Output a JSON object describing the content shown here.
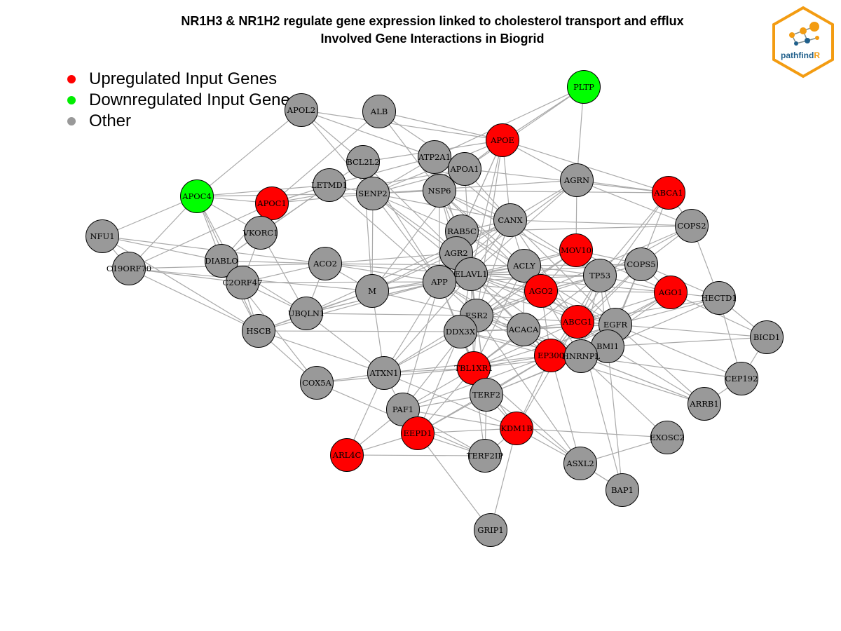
{
  "header": {
    "title": "NR1H3 & NR1H2 regulate gene expression linked to cholesterol transport and efflux",
    "subtitle": "Involved Gene Interactions in Biogrid"
  },
  "logo": {
    "text_main": "pathfind",
    "text_accent": "R",
    "icon": "pathfindr-network-logo"
  },
  "legend": [
    {
      "label": "Upregulated Input Genes",
      "color": "#ff0000"
    },
    {
      "label": "Downregulated Input Genes",
      "color": "#00ee00"
    },
    {
      "label": "Other",
      "color": "#999999"
    }
  ],
  "colors": {
    "up": "#ff0000",
    "down": "#00ff00",
    "other": "#999999",
    "edge": "#aaaaaa",
    "node_border": "#000000",
    "logo_orange": "#f39c12",
    "logo_blue": "#1f5f8b"
  },
  "nodes": [
    {
      "id": "PLTP",
      "status": "down"
    },
    {
      "id": "APOL2",
      "status": "other"
    },
    {
      "id": "ALB",
      "status": "other"
    },
    {
      "id": "APOE",
      "status": "up"
    },
    {
      "id": "ATP2A1",
      "status": "other"
    },
    {
      "id": "BCL2L2",
      "status": "other"
    },
    {
      "id": "APOA1",
      "status": "other"
    },
    {
      "id": "AGRN",
      "status": "other"
    },
    {
      "id": "ABCA1",
      "status": "up"
    },
    {
      "id": "APOC4",
      "status": "down"
    },
    {
      "id": "APOC1",
      "status": "up"
    },
    {
      "id": "LETMD1",
      "status": "other"
    },
    {
      "id": "SENP2",
      "status": "other"
    },
    {
      "id": "NSP6",
      "status": "other"
    },
    {
      "id": "NFU1",
      "status": "other"
    },
    {
      "id": "VKORC1",
      "status": "other"
    },
    {
      "id": "CANX",
      "status": "other"
    },
    {
      "id": "COPS2",
      "status": "other"
    },
    {
      "id": "RAB5C",
      "status": "other"
    },
    {
      "id": "AGR2",
      "status": "other"
    },
    {
      "id": "MOV10",
      "status": "up"
    },
    {
      "id": "DIABLO",
      "status": "other"
    },
    {
      "id": "C19ORF70",
      "status": "other"
    },
    {
      "id": "ACO2",
      "status": "other"
    },
    {
      "id": "C2ORF47",
      "status": "other"
    },
    {
      "id": "ELAVL1",
      "status": "other"
    },
    {
      "id": "ACLY",
      "status": "other"
    },
    {
      "id": "COPS5",
      "status": "other"
    },
    {
      "id": "TP53",
      "status": "other"
    },
    {
      "id": "APP",
      "status": "other"
    },
    {
      "id": "M",
      "status": "other"
    },
    {
      "id": "AGO2",
      "status": "up"
    },
    {
      "id": "AGO1",
      "status": "up"
    },
    {
      "id": "HECTD1",
      "status": "other"
    },
    {
      "id": "UBQLN1",
      "status": "other"
    },
    {
      "id": "ESR2",
      "status": "other"
    },
    {
      "id": "HSCB",
      "status": "other"
    },
    {
      "id": "DDX3X",
      "status": "other"
    },
    {
      "id": "ACACA",
      "status": "other"
    },
    {
      "id": "ABCG1",
      "status": "up"
    },
    {
      "id": "EGFR",
      "status": "other"
    },
    {
      "id": "BICD1",
      "status": "other"
    },
    {
      "id": "BMI1",
      "status": "other"
    },
    {
      "id": "EP300",
      "status": "up"
    },
    {
      "id": "HNRNPL",
      "status": "other"
    },
    {
      "id": "TBL1XR1",
      "status": "up"
    },
    {
      "id": "ATXN1",
      "status": "other"
    },
    {
      "id": "COX5A",
      "status": "other"
    },
    {
      "id": "CEP192",
      "status": "other"
    },
    {
      "id": "TERF2",
      "status": "other"
    },
    {
      "id": "ARRB1",
      "status": "other"
    },
    {
      "id": "PAF1",
      "status": "other"
    },
    {
      "id": "EEPD1",
      "status": "up"
    },
    {
      "id": "KDM1B",
      "status": "up"
    },
    {
      "id": "EXOSC2",
      "status": "other"
    },
    {
      "id": "ARL4C",
      "status": "up"
    },
    {
      "id": "TERF2IP",
      "status": "other"
    },
    {
      "id": "ASXL2",
      "status": "other"
    },
    {
      "id": "BAP1",
      "status": "other"
    },
    {
      "id": "GRIP1",
      "status": "other"
    }
  ],
  "edges": [
    [
      "PLTP",
      "APOE"
    ],
    [
      "PLTP",
      "ATP2A1"
    ],
    [
      "PLTP",
      "AGRN"
    ],
    [
      "PLTP",
      "APOA1"
    ],
    [
      "APOL2",
      "APOC4"
    ],
    [
      "APOL2",
      "ATP2A1"
    ],
    [
      "APOL2",
      "BCL2L2"
    ],
    [
      "APOL2",
      "SENP2"
    ],
    [
      "APOL2",
      "APOE"
    ],
    [
      "ALB",
      "APOE"
    ],
    [
      "ALB",
      "NSP6"
    ],
    [
      "ALB",
      "APOC1"
    ],
    [
      "ALB",
      "APOA1"
    ],
    [
      "APOE",
      "SENP2"
    ],
    [
      "APOE",
      "APOA1"
    ],
    [
      "APOE",
      "AGRN"
    ],
    [
      "APOE",
      "CANX"
    ],
    [
      "APOE",
      "APP"
    ],
    [
      "APOE",
      "ELAVL1"
    ],
    [
      "APOE",
      "ESR2"
    ],
    [
      "APOE",
      "BCL2L2"
    ],
    [
      "APOE",
      "ABCA1"
    ],
    [
      "APOE",
      "RAB5C"
    ],
    [
      "ATP2A1",
      "SENP2"
    ],
    [
      "ATP2A1",
      "NSP6"
    ],
    [
      "ATP2A1",
      "CANX"
    ],
    [
      "ATP2A1",
      "LETMD1"
    ],
    [
      "ATP2A1",
      "ELAVL1"
    ],
    [
      "BCL2L2",
      "SENP2"
    ],
    [
      "BCL2L2",
      "LETMD1"
    ],
    [
      "BCL2L2",
      "APP"
    ],
    [
      "BCL2L2",
      "M"
    ],
    [
      "BCL2L2",
      "AGR2"
    ],
    [
      "APOA1",
      "SENP2"
    ],
    [
      "APOA1",
      "NSP6"
    ],
    [
      "APOA1",
      "ABCA1"
    ],
    [
      "APOA1",
      "CANX"
    ],
    [
      "APOA1",
      "APOC1"
    ],
    [
      "APOA1",
      "ELAVL1"
    ],
    [
      "APOA1",
      "M"
    ],
    [
      "AGRN",
      "ABCA1"
    ],
    [
      "AGRN",
      "CANX"
    ],
    [
      "AGRN",
      "SENP2"
    ],
    [
      "AGRN",
      "COPS2"
    ],
    [
      "AGRN",
      "MOV10"
    ],
    [
      "AGRN",
      "APP"
    ],
    [
      "AGRN",
      "ELAVL1"
    ],
    [
      "ABCA1",
      "COPS2"
    ],
    [
      "ABCA1",
      "NSP6"
    ],
    [
      "ABCA1",
      "COPS5"
    ],
    [
      "ABCA1",
      "TP53"
    ],
    [
      "ABCA1",
      "ABCG1"
    ],
    [
      "APOC4",
      "APOC1"
    ],
    [
      "APOC4",
      "LETMD1"
    ],
    [
      "APOC4",
      "NFU1"
    ],
    [
      "APOC4",
      "C19ORF70"
    ],
    [
      "APOC4",
      "DIABLO"
    ],
    [
      "APOC4",
      "C2ORF47"
    ],
    [
      "APOC4",
      "HSCB"
    ],
    [
      "APOC4",
      "VKORC1"
    ],
    [
      "APOC4",
      "SENP2"
    ],
    [
      "APOC1",
      "SENP2"
    ],
    [
      "APOC1",
      "LETMD1"
    ],
    [
      "APOC1",
      "VKORC1"
    ],
    [
      "APOC1",
      "DIABLO"
    ],
    [
      "APOC1",
      "C19ORF70"
    ],
    [
      "LETMD1",
      "SENP2"
    ],
    [
      "LETMD1",
      "VKORC1"
    ],
    [
      "LETMD1",
      "DIABLO"
    ],
    [
      "LETMD1",
      "APP"
    ],
    [
      "SENP2",
      "NSP6"
    ],
    [
      "SENP2",
      "M"
    ],
    [
      "SENP2",
      "APP"
    ],
    [
      "SENP2",
      "CANX"
    ],
    [
      "SENP2",
      "ELAVL1"
    ],
    [
      "SENP2",
      "AGR2"
    ],
    [
      "SENP2",
      "RAB5C"
    ],
    [
      "NSP6",
      "CANX"
    ],
    [
      "NSP6",
      "RAB5C"
    ],
    [
      "NSP6",
      "AGR2"
    ],
    [
      "NSP6",
      "APP"
    ],
    [
      "NSP6",
      "ELAVL1"
    ],
    [
      "NSP6",
      "ACLY"
    ],
    [
      "NSP6",
      "AGO2"
    ],
    [
      "NSP6",
      "TP53"
    ],
    [
      "NFU1",
      "DIABLO"
    ],
    [
      "NFU1",
      "C19ORF70"
    ],
    [
      "NFU1",
      "HSCB"
    ],
    [
      "NFU1",
      "ACO2"
    ],
    [
      "VKORC1",
      "DIABLO"
    ],
    [
      "VKORC1",
      "C2ORF47"
    ],
    [
      "VKORC1",
      "UBQLN1"
    ],
    [
      "CANX",
      "COPS2"
    ],
    [
      "CANX",
      "RAB5C"
    ],
    [
      "CANX",
      "AGR2"
    ],
    [
      "CANX",
      "APP"
    ],
    [
      "CANX",
      "ELAVL1"
    ],
    [
      "CANX",
      "ACLY"
    ],
    [
      "CANX",
      "TP53"
    ],
    [
      "CANX",
      "ABCG1"
    ],
    [
      "CANX",
      "ESR2"
    ],
    [
      "CANX",
      "EGFR"
    ],
    [
      "CANX",
      "M"
    ],
    [
      "CANX",
      "UBQLN1"
    ],
    [
      "COPS2",
      "COPS5"
    ],
    [
      "COPS2",
      "TP53"
    ],
    [
      "COPS2",
      "RAB5C"
    ],
    [
      "COPS2",
      "HECTD1"
    ],
    [
      "COPS2",
      "AGO2"
    ],
    [
      "RAB5C",
      "AGR2"
    ],
    [
      "RAB5C",
      "APP"
    ],
    [
      "RAB5C",
      "ELAVL1"
    ],
    [
      "RAB5C",
      "ESR2"
    ],
    [
      "RAB5C",
      "EGFR"
    ],
    [
      "RAB5C",
      "AGO2"
    ],
    [
      "AGR2",
      "APP"
    ],
    [
      "AGR2",
      "ELAVL1"
    ],
    [
      "AGR2",
      "ACO2"
    ],
    [
      "AGR2",
      "M"
    ],
    [
      "MOV10",
      "AGO2"
    ],
    [
      "MOV10",
      "AGO1"
    ],
    [
      "MOV10",
      "TP53"
    ],
    [
      "MOV10",
      "ELAVL1"
    ],
    [
      "MOV10",
      "ACLY"
    ],
    [
      "MOV10",
      "ESR2"
    ],
    [
      "MOV10",
      "DDX3X"
    ],
    [
      "MOV10",
      "COPS5"
    ],
    [
      "DIABLO",
      "C2ORF47"
    ],
    [
      "DIABLO",
      "HSCB"
    ],
    [
      "DIABLO",
      "ACO2"
    ],
    [
      "DIABLO",
      "UBQLN1"
    ],
    [
      "DIABLO",
      "COX5A"
    ],
    [
      "C19ORF70",
      "ACO2"
    ],
    [
      "C19ORF70",
      "HSCB"
    ],
    [
      "C19ORF70",
      "C2ORF47"
    ],
    [
      "C19ORF70",
      "M"
    ],
    [
      "ACO2",
      "APP"
    ],
    [
      "ACO2",
      "M"
    ],
    [
      "ACO2",
      "C2ORF47"
    ],
    [
      "ACO2",
      "ELAVL1"
    ],
    [
      "ACO2",
      "UBQLN1"
    ],
    [
      "ACO2",
      "ACLY"
    ],
    [
      "C2ORF47",
      "HSCB"
    ],
    [
      "C2ORF47",
      "UBQLN1"
    ],
    [
      "C2ORF47",
      "APP"
    ],
    [
      "ELAVL1",
      "APP"
    ],
    [
      "ELAVL1",
      "ACLY"
    ],
    [
      "ELAVL1",
      "TP53"
    ],
    [
      "ELAVL1",
      "AGO2"
    ],
    [
      "ELAVL1",
      "ESR2"
    ],
    [
      "ELAVL1",
      "DDX3X"
    ],
    [
      "ELAVL1",
      "ACACA"
    ],
    [
      "ELAVL1",
      "ABCG1"
    ],
    [
      "ELAVL1",
      "EGFR"
    ],
    [
      "ELAVL1",
      "EP300"
    ],
    [
      "ELAVL1",
      "HNRNPL"
    ],
    [
      "ELAVL1",
      "TBL1XR1"
    ],
    [
      "ELAVL1",
      "M"
    ],
    [
      "ELAVL1",
      "ATXN1"
    ],
    [
      "ELAVL1",
      "COPS5"
    ],
    [
      "ELAVL1",
      "UBQLN1"
    ],
    [
      "ELAVL1",
      "TERF2"
    ],
    [
      "ELAVL1",
      "AGO1"
    ],
    [
      "ACLY",
      "TP53"
    ],
    [
      "ACLY",
      "AGO2"
    ],
    [
      "ACLY",
      "ACACA"
    ],
    [
      "ACLY",
      "COPS5"
    ],
    [
      "ACLY",
      "ABCG1"
    ],
    [
      "ACLY",
      "APP"
    ],
    [
      "ACLY",
      "ESR2"
    ],
    [
      "ACLY",
      "TBL1XR1"
    ],
    [
      "COPS5",
      "TP53"
    ],
    [
      "COPS5",
      "AGO1"
    ],
    [
      "COPS5",
      "EGFR"
    ],
    [
      "COPS5",
      "ABCG1"
    ],
    [
      "COPS5",
      "BMI1"
    ],
    [
      "COPS5",
      "HECTD1"
    ],
    [
      "COPS5",
      "AGO2"
    ],
    [
      "COPS5",
      "EP300"
    ],
    [
      "TP53",
      "AGO2"
    ],
    [
      "TP53",
      "ABCG1"
    ],
    [
      "TP53",
      "EGFR"
    ],
    [
      "TP53",
      "EP300"
    ],
    [
      "TP53",
      "BMI1"
    ],
    [
      "TP53",
      "HNRNPL"
    ],
    [
      "TP53",
      "ESR2"
    ],
    [
      "TP53",
      "APP"
    ],
    [
      "TP53",
      "AGO1"
    ],
    [
      "TP53",
      "TBL1XR1"
    ],
    [
      "APP",
      "M"
    ],
    [
      "APP",
      "UBQLN1"
    ],
    [
      "APP",
      "ESR2"
    ],
    [
      "APP",
      "DDX3X"
    ],
    [
      "APP",
      "ACACA"
    ],
    [
      "APP",
      "AGO2"
    ],
    [
      "APP",
      "EP300"
    ],
    [
      "APP",
      "ATXN1"
    ],
    [
      "APP",
      "TBL1XR1"
    ],
    [
      "APP",
      "HSCB"
    ],
    [
      "APP",
      "PAF1"
    ],
    [
      "APP",
      "EGFR"
    ],
    [
      "M",
      "UBQLN1"
    ],
    [
      "M",
      "ATXN1"
    ],
    [
      "M",
      "HSCB"
    ],
    [
      "M",
      "ESR2"
    ],
    [
      "AGO2",
      "AGO1"
    ],
    [
      "AGO2",
      "ABCG1"
    ],
    [
      "AGO2",
      "ESR2"
    ],
    [
      "AGO2",
      "EGFR"
    ],
    [
      "AGO2",
      "HNRNPL"
    ],
    [
      "AGO2",
      "DDX3X"
    ],
    [
      "AGO2",
      "EP300"
    ],
    [
      "AGO1",
      "ABCG1"
    ],
    [
      "AGO1",
      "HECTD1"
    ],
    [
      "AGO1",
      "EGFR"
    ],
    [
      "AGO1",
      "EP300"
    ],
    [
      "AGO1",
      "BICD1"
    ],
    [
      "AGO1",
      "HNRNPL"
    ],
    [
      "HECTD1",
      "BICD1"
    ],
    [
      "HECTD1",
      "EGFR"
    ],
    [
      "HECTD1",
      "ABCG1"
    ],
    [
      "HECTD1",
      "CEP192"
    ],
    [
      "HECTD1",
      "BMI1"
    ],
    [
      "UBQLN1",
      "HSCB"
    ],
    [
      "UBQLN1",
      "ESR2"
    ],
    [
      "UBQLN1",
      "ATXN1"
    ],
    [
      "ESR2",
      "DDX3X"
    ],
    [
      "ESR2",
      "ACACA"
    ],
    [
      "ESR2",
      "EP300"
    ],
    [
      "ESR2",
      "TBL1XR1"
    ],
    [
      "ESR2",
      "HNRNPL"
    ],
    [
      "ESR2",
      "TERF2"
    ],
    [
      "ESR2",
      "ABCG1"
    ],
    [
      "ESR2",
      "ATXN1"
    ],
    [
      "ESR2",
      "PAF1"
    ],
    [
      "HSCB",
      "COX5A"
    ],
    [
      "HSCB",
      "ATXN1"
    ],
    [
      "HSCB",
      "DDX3X"
    ],
    [
      "DDX3X",
      "ACACA"
    ],
    [
      "DDX3X",
      "TBL1XR1"
    ],
    [
      "DDX3X",
      "EP300"
    ],
    [
      "DDX3X",
      "HNRNPL"
    ],
    [
      "DDX3X",
      "EGFR"
    ],
    [
      "DDX3X",
      "ATXN1"
    ],
    [
      "DDX3X",
      "TERF2"
    ],
    [
      "DDX3X",
      "EEPD1"
    ],
    [
      "ACACA",
      "ABCG1"
    ],
    [
      "ACACA",
      "EP300"
    ],
    [
      "ACACA",
      "TBL1XR1"
    ],
    [
      "ACACA",
      "HNRNPL"
    ],
    [
      "ACACA",
      "EGFR"
    ],
    [
      "ABCG1",
      "EGFR"
    ],
    [
      "ABCG1",
      "EP300"
    ],
    [
      "ABCG1",
      "HNRNPL"
    ],
    [
      "ABCG1",
      "BMI1"
    ],
    [
      "ABCG1",
      "TBL1XR1"
    ],
    [
      "ABCG1",
      "KDM1B"
    ],
    [
      "EGFR",
      "BMI1"
    ],
    [
      "EGFR",
      "HNRNPL"
    ],
    [
      "EGFR",
      "EP300"
    ],
    [
      "EGFR",
      "BICD1"
    ],
    [
      "EGFR",
      "CEP192"
    ],
    [
      "EGFR",
      "TBL1XR1"
    ],
    [
      "BMI1",
      "HNRNPL"
    ],
    [
      "BMI1",
      "EP300"
    ],
    [
      "BMI1",
      "ARRB1"
    ],
    [
      "BMI1",
      "BAP1"
    ],
    [
      "BMI1",
      "BICD1"
    ],
    [
      "BMI1",
      "TERF2"
    ],
    [
      "EP300",
      "HNRNPL"
    ],
    [
      "EP300",
      "TBL1XR1"
    ],
    [
      "EP300",
      "TERF2"
    ],
    [
      "EP300",
      "KDM1B"
    ],
    [
      "EP300",
      "EEPD1"
    ],
    [
      "EP300",
      "ATXN1"
    ],
    [
      "EP300",
      "ARRB1"
    ],
    [
      "EP300",
      "PAF1"
    ],
    [
      "EP300",
      "ASXL2"
    ],
    [
      "HNRNPL",
      "TBL1XR1"
    ],
    [
      "HNRNPL",
      "TERF2"
    ],
    [
      "HNRNPL",
      "ARRB1"
    ],
    [
      "HNRNPL",
      "EXOSC2"
    ],
    [
      "HNRNPL",
      "CEP192"
    ],
    [
      "TBL1XR1",
      "ATXN1"
    ],
    [
      "TBL1XR1",
      "TERF2"
    ],
    [
      "TBL1XR1",
      "TERF2IP"
    ],
    [
      "TBL1XR1",
      "PAF1"
    ],
    [
      "TBL1XR1",
      "EEPD1"
    ],
    [
      "TBL1XR1",
      "KDM1B"
    ],
    [
      "TBL1XR1",
      "COX5A"
    ],
    [
      "ATXN1",
      "COX5A"
    ],
    [
      "ATXN1",
      "PAF1"
    ],
    [
      "ATXN1",
      "ARL4C"
    ],
    [
      "ATXN1",
      "KDM1B"
    ],
    [
      "COX5A",
      "TERF2IP"
    ],
    [
      "CEP192",
      "BICD1"
    ],
    [
      "CEP192",
      "ARRB1"
    ],
    [
      "TERF2",
      "TERF2IP"
    ],
    [
      "TERF2",
      "EEPD1"
    ],
    [
      "TERF2",
      "KDM1B"
    ],
    [
      "TERF2",
      "PAF1"
    ],
    [
      "TERF2",
      "ASXL2"
    ],
    [
      "ARRB1",
      "EGFR"
    ],
    [
      "ARRB1",
      "ESR2"
    ],
    [
      "PAF1",
      "EEPD1"
    ],
    [
      "PAF1",
      "TERF2IP"
    ],
    [
      "PAF1",
      "ARL4C"
    ],
    [
      "PAF1",
      "KDM1B"
    ],
    [
      "EEPD1",
      "ARL4C"
    ],
    [
      "EEPD1",
      "TERF2IP"
    ],
    [
      "EEPD1",
      "GRIP1"
    ],
    [
      "KDM1B",
      "TERF2IP"
    ],
    [
      "KDM1B",
      "GRIP1"
    ],
    [
      "KDM1B",
      "EXOSC2"
    ],
    [
      "KDM1B",
      "ASXL2"
    ],
    [
      "KDM1B",
      "EEPD1"
    ],
    [
      "ARL4C",
      "TERF2IP"
    ],
    [
      "EXOSC2",
      "ASXL2"
    ],
    [
      "ASXL2",
      "BAP1"
    ],
    [
      "ASXL2",
      "TBL1XR1"
    ],
    [
      "ASXL2",
      "ESR2"
    ],
    [
      "BAP1",
      "ABCG1"
    ],
    [
      "BAP1",
      "ASXL2"
    ]
  ]
}
